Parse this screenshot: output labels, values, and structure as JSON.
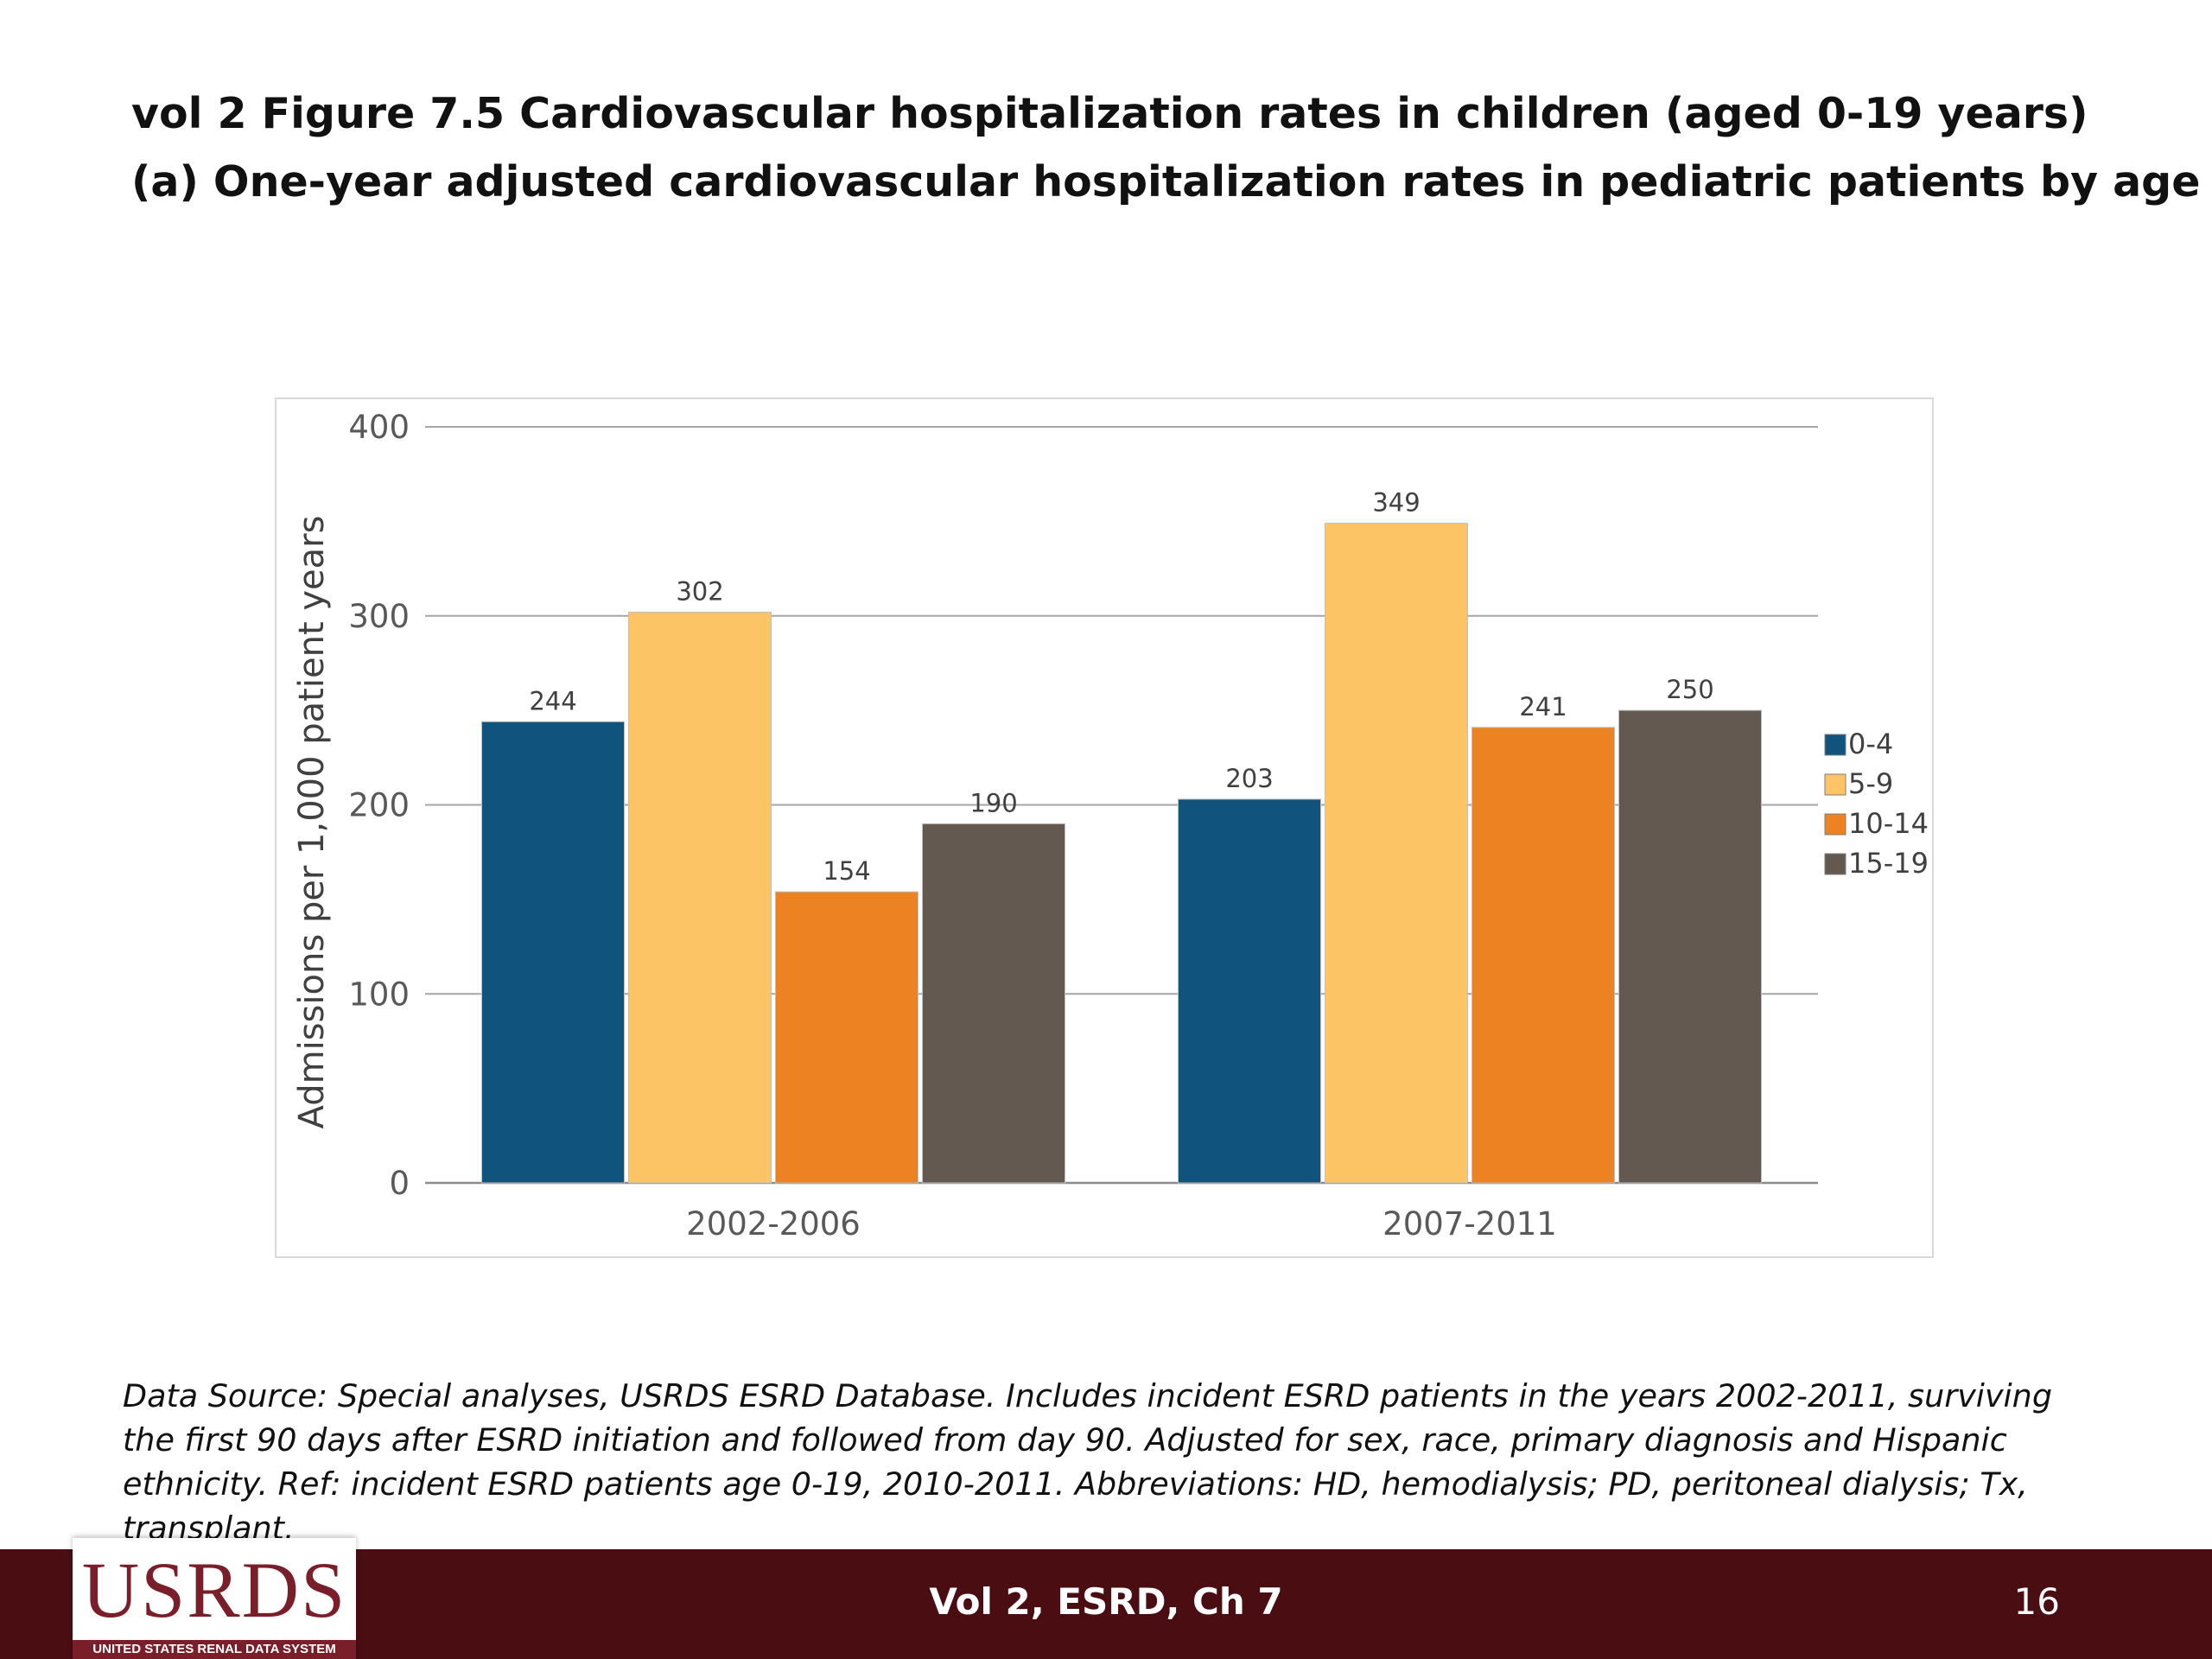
{
  "slide": {
    "title_line1": "vol 2 Figure 7.5 Cardiovascular hospitalization rates in children (aged 0-19 years)",
    "title_line2": "(a) One-year adjusted cardiovascular hospitalization rates in pediatric patients by age",
    "source_note": "Data Source: Special analyses, USRDS ESRD Database. Includes incident ESRD patients in the years 2002-2011, surviving the first 90 days after ESRD initiation and followed from day 90. Adjusted for sex, race, primary diagnosis and Hispanic ethnicity. Ref: incident ESRD patients age 0-19, 2010-2011. Abbreviations: HD, hemodialysis; PD, peritoneal dialysis; Tx, transplant."
  },
  "footer": {
    "center_text": "Vol 2, ESRD, Ch 7",
    "page_number": "16",
    "logo_text": "USRDS",
    "logo_subtext": "UNITED STATES RENAL DATA SYSTEM",
    "bar_color": "#4a0d12",
    "logo_color": "#7a1e2a"
  },
  "chart_data": {
    "type": "bar",
    "title": "",
    "xlabel": "",
    "ylabel": "Admissions per 1,000 patient years",
    "ylim": [
      0,
      400
    ],
    "yticks": [
      0,
      100,
      200,
      300,
      400
    ],
    "grid": true,
    "legend_position": "right",
    "categories": [
      "2002-2006",
      "2007-2011"
    ],
    "series": [
      {
        "name": "0-4",
        "values": [
          244,
          203
        ],
        "color": "#10547e"
      },
      {
        "name": "5-9",
        "values": [
          302,
          349
        ],
        "color": "#fdc466"
      },
      {
        "name": "10-14",
        "values": [
          154,
          241
        ],
        "color": "#ec8222"
      },
      {
        "name": "15-19",
        "values": [
          190,
          250
        ],
        "color": "#635950"
      }
    ]
  }
}
